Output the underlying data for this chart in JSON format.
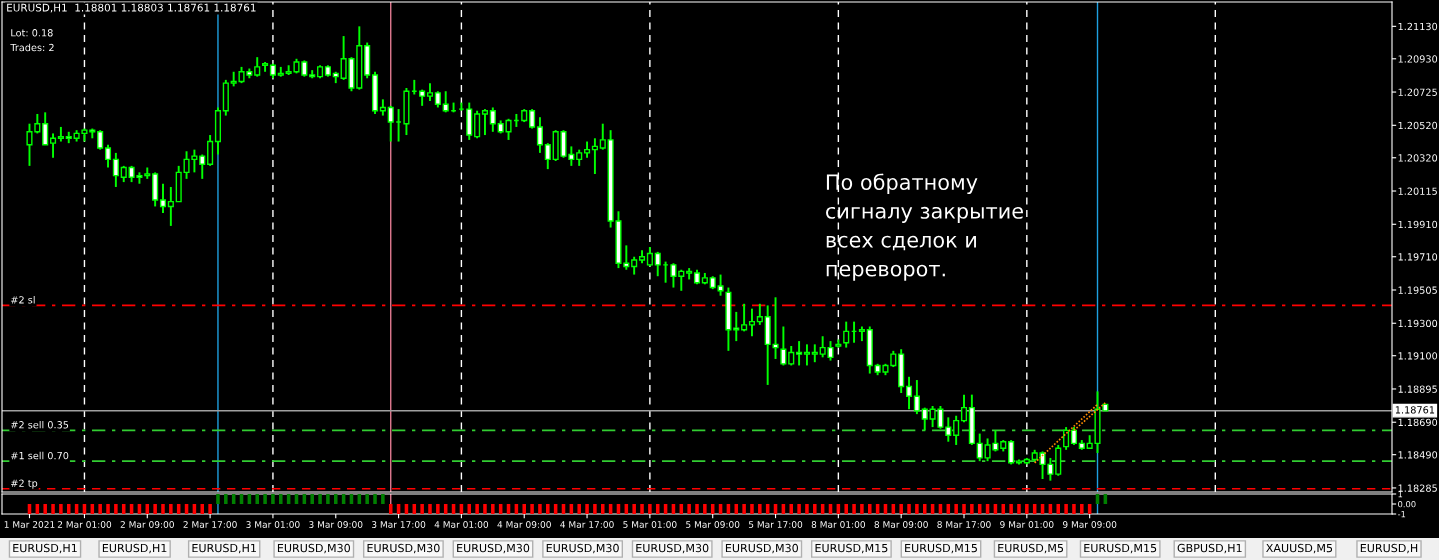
{
  "chart_data": [
    {
      "type": "candlestick",
      "title": "EURUSD,H1  1.18801 1.18803 1.18761 1.18761",
      "color": "#00ff00",
      "tick_labels": "y",
      "categories": [
        null,
        null,
        null,
        null,
        null,
        null,
        null,
        null,
        null,
        null,
        null,
        null,
        null,
        null,
        null,
        null,
        null,
        null,
        null,
        null,
        null,
        null,
        null,
        null,
        null,
        null,
        null,
        null,
        null,
        null,
        null,
        null,
        null,
        null,
        null,
        null,
        null,
        null,
        null,
        null,
        null,
        null,
        null,
        null,
        null,
        null,
        null,
        null,
        null,
        null,
        null,
        null,
        null,
        null,
        null,
        null,
        null,
        null,
        null,
        null,
        null,
        null,
        null,
        null,
        null,
        null,
        null,
        null,
        null,
        null,
        null,
        null,
        null,
        null,
        null,
        null,
        null,
        null,
        null,
        null,
        null,
        null,
        null,
        null,
        null,
        null,
        null,
        null,
        null,
        null,
        null,
        null,
        null,
        null,
        null,
        null,
        null,
        null,
        null,
        null,
        null,
        null,
        null,
        null,
        null,
        null,
        null,
        null,
        null,
        null,
        null,
        null,
        null,
        null,
        null,
        null,
        null,
        null,
        null,
        null,
        null,
        null,
        null,
        null,
        null,
        null,
        null,
        null,
        null,
        null,
        null,
        null,
        null,
        null,
        null,
        null,
        null,
        null,
        null,
        null,
        null,
        null,
        null,
        null,
        null,
        null,
        null,
        null,
        null,
        null,
        null,
        null,
        null,
        null,
        null,
        null,
        null,
        null,
        null,
        null,
        null,
        null,
        null,
        null,
        null,
        null,
        null,
        null,
        null,
        null,
        null,
        null,
        null,
        null,
        null,
        null,
        null
      ],
      "ohlc": [
        null,
        null,
        null,
        [
          1.204,
          1.2053,
          1.2027,
          1.2048
        ],
        [
          1.2048,
          1.2059,
          1.2047,
          1.2053
        ],
        [
          1.2053,
          1.206,
          1.204,
          1.204
        ],
        [
          1.2041,
          1.2047,
          1.2032,
          1.2044
        ],
        [
          1.2044,
          1.2051,
          1.2042,
          1.2045
        ],
        [
          1.2045,
          1.2048,
          1.2041,
          1.2044
        ],
        [
          1.2044,
          1.2049,
          1.2042,
          1.2047
        ],
        [
          1.2047,
          1.205,
          1.2042,
          1.2049
        ],
        [
          1.2049,
          1.205,
          1.2044,
          1.2048
        ],
        [
          1.2048,
          1.2049,
          1.2037,
          1.2038
        ],
        [
          1.2038,
          1.204,
          1.2026,
          1.2031
        ],
        [
          1.2031,
          1.2035,
          1.2014,
          1.2021
        ],
        [
          1.202,
          1.2027,
          1.2017,
          1.2026
        ],
        [
          1.2026,
          1.2027,
          1.2017,
          1.202
        ],
        [
          1.2021,
          1.2023,
          1.2016,
          1.202
        ],
        [
          1.2021,
          1.2026,
          1.2019,
          1.2022
        ],
        [
          1.2022,
          1.2023,
          1.2002,
          1.2006
        ],
        [
          1.2006,
          1.2016,
          1.1998,
          1.2002
        ],
        [
          1.2002,
          1.2014,
          1.199,
          1.2005
        ],
        [
          1.2005,
          1.2027,
          1.2005,
          1.2023
        ],
        [
          1.2023,
          1.2036,
          1.2019,
          1.2031
        ],
        [
          1.2031,
          1.2037,
          1.2023,
          1.2033
        ],
        [
          1.2033,
          1.2034,
          1.2019,
          1.2028
        ],
        [
          1.2028,
          1.2046,
          1.2027,
          1.2042
        ],
        [
          1.2042,
          1.2063,
          1.2034,
          1.2061
        ],
        [
          1.2061,
          1.208,
          1.2058,
          1.2078
        ],
        [
          1.2078,
          1.2085,
          1.2076,
          1.2079
        ],
        [
          1.2079,
          1.2088,
          1.2078,
          1.2085
        ],
        [
          1.2085,
          1.2087,
          1.2081,
          1.2083
        ],
        [
          1.2083,
          1.2094,
          1.2082,
          1.2088
        ],
        [
          1.2089,
          1.2091,
          1.2085,
          1.209
        ],
        [
          1.2089,
          1.209,
          1.2081,
          1.2083
        ],
        [
          1.2083,
          1.2088,
          1.2082,
          1.2084
        ],
        [
          1.2084,
          1.2089,
          1.2083,
          1.2085
        ],
        [
          1.2085,
          1.2093,
          1.2084,
          1.2091
        ],
        [
          1.2091,
          1.2092,
          1.2082,
          1.2083
        ],
        [
          1.2083,
          1.2086,
          1.2081,
          1.2082
        ],
        [
          1.2082,
          1.2089,
          1.2081,
          1.2088
        ],
        [
          1.2088,
          1.2089,
          1.2082,
          1.2083
        ],
        [
          1.2084,
          1.2085,
          1.2078,
          1.2082
        ],
        [
          1.2081,
          1.2107,
          1.208,
          1.2093
        ],
        [
          1.2093,
          1.2094,
          1.2073,
          1.2075
        ],
        [
          1.2075,
          1.2113,
          1.2074,
          1.2101
        ],
        [
          1.2101,
          1.2103,
          1.2081,
          1.2083
        ],
        [
          1.2083,
          1.2085,
          1.2059,
          1.2061
        ],
        [
          1.2061,
          1.2068,
          1.2058,
          1.2063
        ],
        [
          1.2063,
          1.2064,
          1.2042,
          1.2054
        ],
        [
          1.2054,
          1.2062,
          1.2042,
          1.2054
        ],
        [
          1.2053,
          1.2075,
          1.2046,
          1.2073
        ],
        [
          1.2073,
          1.208,
          1.2071,
          1.2073
        ],
        [
          1.2073,
          1.2074,
          1.2064,
          1.207
        ],
        [
          1.207,
          1.2078,
          1.2067,
          1.2072
        ],
        [
          1.2072,
          1.2073,
          1.2063,
          1.2065
        ],
        [
          1.2065,
          1.2073,
          1.206,
          1.2061
        ],
        [
          1.2061,
          1.2066,
          1.206,
          1.2061
        ],
        [
          1.2062,
          1.2066,
          1.2061,
          1.2062
        ],
        [
          1.2062,
          1.2066,
          1.2043,
          1.2046
        ],
        [
          1.2045,
          1.2061,
          1.2044,
          1.2059
        ],
        [
          1.2059,
          1.2062,
          1.2046,
          1.2061
        ],
        [
          1.2061,
          1.2063,
          1.2048,
          1.2053
        ],
        [
          1.2053,
          1.2055,
          1.2047,
          1.2048
        ],
        [
          1.2048,
          1.2056,
          1.2043,
          1.2055
        ],
        [
          1.2055,
          1.2059,
          1.2051,
          1.2055
        ],
        [
          1.2055,
          1.2062,
          1.2054,
          1.2061
        ],
        [
          1.2061,
          1.2062,
          1.205,
          1.2051
        ],
        [
          1.2051,
          1.2057,
          1.2035,
          1.204
        ],
        [
          1.204,
          1.2041,
          1.2025,
          1.2031
        ],
        [
          1.2031,
          1.2049,
          1.203,
          1.2048
        ],
        [
          1.2048,
          1.2049,
          1.2032,
          1.2033
        ],
        [
          1.2034,
          1.2039,
          1.2027,
          1.2031
        ],
        [
          1.2031,
          1.2037,
          1.2027,
          1.2035
        ],
        [
          1.2035,
          1.2042,
          1.2032,
          1.2037
        ],
        [
          1.2037,
          1.2044,
          1.2022,
          1.2039
        ],
        [
          1.2038,
          1.2053,
          1.2037,
          1.2043
        ],
        [
          1.2043,
          1.2049,
          1.1989,
          1.1993
        ],
        [
          1.1993,
          1.1999,
          1.1964,
          1.1967
        ],
        [
          1.1967,
          1.1978,
          1.1963,
          1.1965
        ],
        [
          1.1965,
          1.1971,
          1.196,
          1.1969
        ],
        [
          1.1969,
          1.1975,
          1.1967,
          1.1971
        ],
        [
          1.1966,
          1.1977,
          1.1965,
          1.1973
        ],
        [
          1.1973,
          1.1974,
          1.1959,
          1.1966
        ],
        [
          1.1966,
          1.1968,
          1.1955,
          1.1966
        ],
        [
          1.1966,
          1.1967,
          1.1952,
          1.1959
        ],
        [
          1.1959,
          1.1963,
          1.195,
          1.1962
        ],
        [
          1.1961,
          1.1964,
          1.1957,
          1.1962
        ],
        [
          1.1961,
          1.1963,
          1.1954,
          1.1955
        ],
        [
          1.1955,
          1.1961,
          1.1954,
          1.1958
        ],
        [
          1.1958,
          1.1959,
          1.1951,
          1.1952
        ],
        [
          1.1953,
          1.196,
          1.1947,
          1.195
        ],
        [
          1.1949,
          1.1952,
          1.1913,
          1.1926
        ],
        [
          1.1927,
          1.1937,
          1.1919,
          1.1926
        ],
        [
          1.1926,
          1.1942,
          1.1925,
          1.1929
        ],
        [
          1.1929,
          1.1939,
          1.1922,
          1.1931
        ],
        [
          1.1931,
          1.1942,
          1.1929,
          1.1934
        ],
        [
          1.1934,
          1.1941,
          1.1892,
          1.1917
        ],
        [
          1.1917,
          1.1946,
          1.1908,
          1.1915
        ],
        [
          1.1914,
          1.1928,
          1.1904,
          1.1905
        ],
        [
          1.1905,
          1.1916,
          1.1904,
          1.1912
        ],
        [
          1.1912,
          1.1919,
          1.1904,
          1.1911
        ],
        [
          1.1911,
          1.1917,
          1.1904,
          1.1912
        ],
        [
          1.1911,
          1.1917,
          1.1906,
          1.1912
        ],
        [
          1.1911,
          1.1922,
          1.1909,
          1.1915
        ],
        [
          1.1915,
          1.1919,
          1.1907,
          1.1909
        ],
        [
          1.1916,
          1.192,
          1.1915,
          1.1917
        ],
        [
          1.1918,
          1.1931,
          1.1915,
          1.1925
        ],
        [
          1.1925,
          1.1931,
          1.1918,
          1.1925
        ],
        [
          1.1925,
          1.1928,
          1.1919,
          1.1926
        ],
        [
          1.1926,
          1.1928,
          1.1899,
          1.1904
        ],
        [
          1.1904,
          1.1905,
          1.1898,
          1.19
        ],
        [
          1.19,
          1.1905,
          1.1898,
          1.1904
        ],
        [
          1.1904,
          1.1913,
          1.1903,
          1.1911
        ],
        [
          1.1911,
          1.1914,
          1.1887,
          1.1891
        ],
        [
          1.1891,
          1.1897,
          1.1877,
          1.1885
        ],
        [
          1.1885,
          1.1895,
          1.1874,
          1.1876
        ],
        [
          1.1877,
          1.1878,
          1.1864,
          1.1871
        ],
        [
          1.1871,
          1.1879,
          1.1866,
          1.1877
        ],
        [
          1.1877,
          1.1879,
          1.1865,
          1.1866
        ],
        [
          1.1866,
          1.1872,
          1.1857,
          1.1861
        ],
        [
          1.1861,
          1.1873,
          1.1855,
          1.187
        ],
        [
          1.187,
          1.1886,
          1.1869,
          1.1878
        ],
        [
          1.1878,
          1.1886,
          1.1855,
          1.1856
        ],
        [
          1.1856,
          1.1862,
          1.1845,
          1.1847
        ],
        [
          1.1847,
          1.1859,
          1.1845,
          1.1855
        ],
        [
          1.1856,
          1.1864,
          1.1851,
          1.1852
        ],
        [
          1.1853,
          1.1858,
          1.1851,
          1.1857
        ],
        [
          1.1857,
          1.1858,
          1.1843,
          1.1844
        ],
        [
          1.1844,
          1.1846,
          1.1843,
          1.1845
        ],
        [
          1.1844,
          1.1847,
          1.1843,
          1.1846
        ],
        [
          1.1846,
          1.1852,
          1.1845,
          1.185
        ],
        [
          1.185,
          1.1851,
          1.1834,
          1.1843
        ],
        [
          1.1843,
          1.1847,
          1.1833,
          1.1837
        ],
        [
          1.1837,
          1.1855,
          1.1836,
          1.1853
        ],
        [
          1.1854,
          1.1866,
          1.1852,
          1.1864
        ],
        [
          1.1864,
          1.1866,
          1.1855,
          1.1856
        ],
        [
          1.1856,
          1.1858,
          1.1852,
          1.1853
        ],
        [
          1.1853,
          1.1861,
          1.1853,
          1.1856
        ],
        [
          1.1856,
          1.1888,
          1.185,
          1.1877
        ],
        [
          1.188,
          1.188,
          1.1876,
          1.1876
        ],
        null,
        null,
        null,
        null,
        null,
        null,
        null,
        null,
        null,
        null,
        null,
        null,
        null,
        null,
        null,
        null,
        null,
        null,
        null,
        null,
        null,
        null,
        null,
        null,
        null,
        null,
        null,
        null,
        null,
        null,
        null,
        null,
        null,
        null,
        null,
        null
      ],
      "series": [
        {
          "type": "line",
          "color": "#ff8c00",
          "line_style": "dotted",
          "values": [
            null,
            null,
            null,
            null,
            null,
            null,
            null,
            null,
            null,
            null,
            null,
            null,
            null,
            null,
            null,
            null,
            null,
            null,
            null,
            null,
            null,
            null,
            null,
            null,
            null,
            null,
            null,
            null,
            null,
            null,
            null,
            null,
            null,
            null,
            null,
            null,
            null,
            null,
            null,
            null,
            null,
            null,
            null,
            null,
            null,
            null,
            null,
            null,
            null,
            null,
            null,
            null,
            null,
            null,
            null,
            null,
            null,
            null,
            null,
            null,
            null,
            null,
            null,
            null,
            null,
            null,
            null,
            null,
            null,
            null,
            null,
            null,
            null,
            null,
            null,
            null,
            null,
            null,
            null,
            null,
            null,
            null,
            null,
            null,
            null,
            null,
            null,
            null,
            null,
            null,
            null,
            null,
            null,
            null,
            null,
            null,
            null,
            null,
            null,
            null,
            null,
            null,
            null,
            null,
            null,
            null,
            null,
            null,
            null,
            null,
            null,
            null,
            null,
            null,
            null,
            null,
            null,
            null,
            null,
            null,
            null,
            null,
            null,
            null,
            null,
            null,
            null,
            null,
            null,
            null,
            null,
            1.1844,
            null,
            null,
            null,
            null,
            null,
            null,
            null,
            1.188,
            null,
            null,
            null,
            null,
            null,
            null,
            null,
            null,
            null,
            null,
            null,
            null,
            null,
            null,
            null,
            null,
            null,
            null,
            null,
            null,
            null,
            null,
            null,
            null,
            null,
            null,
            null,
            null,
            null,
            null,
            null,
            null,
            null,
            null,
            null,
            null,
            null
          ]
        },
        {
          "type": "line",
          "color": "#ff8c00",
          "line_style": "dotted",
          "values": [
            null,
            null,
            null,
            null,
            null,
            null,
            null,
            null,
            null,
            null,
            null,
            null,
            null,
            null,
            null,
            null,
            null,
            null,
            null,
            null,
            null,
            null,
            null,
            null,
            null,
            null,
            null,
            null,
            null,
            null,
            null,
            null,
            null,
            null,
            null,
            null,
            null,
            null,
            null,
            null,
            null,
            null,
            null,
            null,
            null,
            null,
            null,
            null,
            null,
            null,
            null,
            null,
            null,
            null,
            null,
            null,
            null,
            null,
            null,
            null,
            null,
            null,
            null,
            null,
            null,
            null,
            null,
            null,
            null,
            null,
            null,
            null,
            null,
            null,
            null,
            null,
            null,
            null,
            null,
            null,
            null,
            null,
            null,
            null,
            null,
            null,
            null,
            null,
            null,
            null,
            null,
            null,
            null,
            null,
            null,
            null,
            null,
            null,
            null,
            null,
            null,
            null,
            null,
            null,
            null,
            null,
            null,
            null,
            null,
            null,
            null,
            null,
            null,
            null,
            null,
            null,
            null,
            null,
            null,
            null,
            null,
            null,
            null,
            null,
            null,
            null,
            null,
            null,
            null,
            null,
            null,
            null,
            null,
            null,
            null,
            null,
            1.1864,
            null,
            null,
            null,
            1.1881,
            null,
            null,
            null,
            null,
            null,
            null,
            null,
            null,
            null,
            null,
            null,
            null,
            null,
            null,
            null,
            null,
            null,
            null,
            null,
            null,
            null,
            null,
            null,
            null,
            null,
            null,
            null,
            null,
            null,
            null,
            null,
            null,
            null,
            null,
            null,
            null
          ]
        }
      ],
      "ylim": [
        1.1826,
        1.2128
      ],
      "yticks": [
        {
          "value": 1.2113,
          "label": "1.21130"
        },
        {
          "value": 1.2093,
          "label": "1.20930"
        },
        {
          "value": 1.20725,
          "label": "1.20725"
        },
        {
          "value": 1.2052,
          "label": "1.20520"
        },
        {
          "value": 1.2032,
          "label": "1.20320"
        },
        {
          "value": 1.20115,
          "label": "1.20115"
        },
        {
          "value": 1.1991,
          "label": "1.19910"
        },
        {
          "value": 1.1971,
          "label": "1.19710"
        },
        {
          "value": 1.19505,
          "label": "1.19505"
        },
        {
          "value": 1.193,
          "label": "1.19300"
        },
        {
          "value": 1.191,
          "label": "1.19100"
        },
        {
          "value": 1.18895,
          "label": "1.18895"
        },
        {
          "value": 1.1869,
          "label": "1.18690"
        },
        {
          "value": 1.1849,
          "label": "1.18490"
        },
        {
          "value": 1.18285,
          "label": "1.18285"
        }
      ],
      "ref_lines": [
        {
          "axis": "y",
          "value": 1.1941,
          "label": "#2 sl",
          "color": "#ff0000",
          "line_style": "dashdot"
        },
        {
          "axis": "y",
          "value": 1.1864,
          "label": "#2 sell 0.35",
          "color": "#32cd32",
          "line_style": "dashdot"
        },
        {
          "axis": "y",
          "value": 1.1845,
          "label": "#1 sell 0.70",
          "color": "#32cd32",
          "line_style": "dashdot"
        },
        {
          "axis": "y",
          "value": 1.1828,
          "label": "#2 tp",
          "color": "#ff0000",
          "line_style": "dashed"
        },
        {
          "axis": "y",
          "value": 1.18761,
          "label": "1.18761",
          "color": "#a0a0a0",
          "line_style": "solid"
        }
      ],
      "annotations": [
        "Lot: 0.18",
        "Trades: 2",
        "По обратному\nсигналу закрытие\nвсех сделок и\nпереворот.",
        "EURUSD,H1",
        "EURUSD,H1",
        "EURUSD,H1",
        "EURUSD,M30",
        "EURUSD,M30",
        "EURUSD,M30",
        "EURUSD,M30",
        "EURUSD,M30",
        "EURUSD,M30",
        "EURUSD,M15",
        "EURUSD,M15",
        "EURUSD,M5",
        "EURUSD,M15",
        "GBPUSD,H1",
        "XAUUSD,M5",
        "EURUSD,H"
      ]
    },
    {
      "type": "bar",
      "categories": [
        null,
        null,
        null,
        "1 Mar 2021",
        null,
        null,
        null,
        null,
        null,
        null,
        "2 Mar 01:00",
        null,
        null,
        null,
        null,
        null,
        null,
        null,
        "2 Mar 09:00",
        null,
        null,
        null,
        null,
        null,
        null,
        null,
        "2 Mar 17:00",
        null,
        null,
        null,
        null,
        null,
        null,
        null,
        "3 Mar 01:00",
        null,
        null,
        null,
        null,
        null,
        null,
        null,
        "3 Mar 09:00",
        null,
        null,
        null,
        null,
        null,
        null,
        null,
        "3 Mar 17:00",
        null,
        null,
        null,
        null,
        null,
        null,
        null,
        "4 Mar 01:00",
        null,
        null,
        null,
        null,
        null,
        null,
        null,
        "4 Mar 09:00",
        null,
        null,
        null,
        null,
        null,
        null,
        null,
        "4 Mar 17:00",
        null,
        null,
        null,
        null,
        null,
        null,
        null,
        "5 Mar 01:00",
        null,
        null,
        null,
        null,
        null,
        null,
        null,
        "5 Mar 09:00",
        null,
        null,
        null,
        null,
        null,
        null,
        null,
        "5 Mar 17:00",
        null,
        null,
        null,
        null,
        null,
        null,
        null,
        "8 Mar 01:00",
        null,
        null,
        null,
        null,
        null,
        null,
        null,
        "8 Mar 09:00",
        null,
        null,
        null,
        null,
        null,
        null,
        null,
        "8 Mar 17:00",
        null,
        null,
        null,
        null,
        null,
        null,
        null,
        "9 Mar 01:00",
        null,
        null,
        null,
        null,
        null,
        null,
        null,
        "9 Mar 09:00",
        null,
        null,
        null,
        null,
        null,
        null,
        null,
        null,
        null,
        null,
        null,
        null,
        null,
        null,
        null,
        null,
        null,
        null,
        null,
        null,
        null,
        null,
        null,
        null,
        null,
        null,
        null,
        null,
        null,
        null,
        null,
        null,
        null,
        null,
        null,
        null,
        null,
        null
      ],
      "values": [
        null,
        null,
        null,
        -1,
        -1,
        -1,
        -1,
        -1,
        -1,
        -1,
        -1,
        -1,
        -1,
        -1,
        -1,
        -1,
        -1,
        -1,
        -1,
        -1,
        -1,
        -1,
        -1,
        -1,
        -1,
        -1,
        -1,
        1,
        1,
        1,
        1,
        1,
        1,
        1,
        1,
        1,
        1,
        1,
        1,
        1,
        1,
        1,
        1,
        1,
        1,
        1,
        1,
        1,
        1,
        -1,
        -1,
        -1,
        -1,
        -1,
        -1,
        -1,
        -1,
        -1,
        -1,
        -1,
        -1,
        -1,
        -1,
        -1,
        -1,
        -1,
        -1,
        -1,
        -1,
        -1,
        -1,
        -1,
        -1,
        -1,
        -1,
        -1,
        -1,
        -1,
        -1,
        -1,
        -1,
        -1,
        -1,
        -1,
        -1,
        -1,
        -1,
        -1,
        -1,
        -1,
        -1,
        -1,
        -1,
        -1,
        -1,
        -1,
        -1,
        -1,
        -1,
        -1,
        -1,
        -1,
        -1,
        -1,
        -1,
        -1,
        -1,
        -1,
        -1,
        -1,
        -1,
        -1,
        -1,
        -1,
        -1,
        -1,
        -1,
        -1,
        -1,
        -1,
        -1,
        -1,
        -1,
        -1,
        -1,
        -1,
        -1,
        -1,
        -1,
        -1,
        -1,
        -1,
        -1,
        -1,
        -1,
        -1,
        -1,
        -1,
        -1,
        1,
        1,
        null,
        null,
        null,
        null,
        null,
        null,
        null,
        null,
        null,
        null,
        null,
        null,
        null,
        null,
        null,
        null,
        null,
        null,
        null,
        null,
        null,
        null,
        null,
        null,
        null,
        null,
        null,
        null,
        null,
        null,
        null,
        null,
        null,
        null,
        null,
        null
      ],
      "colors": [
        null,
        null,
        null,
        "#ff0000",
        "#ff0000",
        "#ff0000",
        "#ff0000",
        "#ff0000",
        "#ff0000",
        "#ff0000",
        "#ff0000",
        "#ff0000",
        "#ff0000",
        "#ff0000",
        "#ff0000",
        "#ff0000",
        "#ff0000",
        "#ff0000",
        "#ff0000",
        "#ff0000",
        "#ff0000",
        "#ff0000",
        "#ff0000",
        "#ff0000",
        "#ff0000",
        "#ff0000",
        "#ff0000",
        "#008000",
        "#008000",
        "#008000",
        "#008000",
        "#008000",
        "#008000",
        "#008000",
        "#008000",
        "#008000",
        "#008000",
        "#008000",
        "#008000",
        "#008000",
        "#008000",
        "#008000",
        "#008000",
        "#008000",
        "#008000",
        "#008000",
        "#008000",
        "#008000",
        "#008000",
        "#ff0000",
        "#ff0000",
        "#ff0000",
        "#ff0000",
        "#ff0000",
        "#ff0000",
        "#ff0000",
        "#ff0000",
        "#ff0000",
        "#ff0000",
        "#ff0000",
        "#ff0000",
        "#ff0000",
        "#ff0000",
        "#ff0000",
        "#ff0000",
        "#ff0000",
        "#ff0000",
        "#ff0000",
        "#ff0000",
        "#ff0000",
        "#ff0000",
        "#ff0000",
        "#ff0000",
        "#ff0000",
        "#ff0000",
        "#ff0000",
        "#ff0000",
        "#ff0000",
        "#ff0000",
        "#ff0000",
        "#ff0000",
        "#ff0000",
        "#ff0000",
        "#ff0000",
        "#ff0000",
        "#ff0000",
        "#ff0000",
        "#ff0000",
        "#ff0000",
        "#ff0000",
        "#ff0000",
        "#ff0000",
        "#ff0000",
        "#ff0000",
        "#ff0000",
        "#ff0000",
        "#ff0000",
        "#ff0000",
        "#ff0000",
        "#ff0000",
        "#ff0000",
        "#ff0000",
        "#ff0000",
        "#ff0000",
        "#ff0000",
        "#ff0000",
        "#ff0000",
        "#ff0000",
        "#ff0000",
        "#ff0000",
        "#ff0000",
        "#ff0000",
        "#ff0000",
        "#ff0000",
        "#ff0000",
        "#ff0000",
        "#ff0000",
        "#ff0000",
        "#ff0000",
        "#ff0000",
        "#ff0000",
        "#ff0000",
        "#ff0000",
        "#ff0000",
        "#ff0000",
        "#ff0000",
        "#ff0000",
        "#ff0000",
        "#ff0000",
        "#ff0000",
        "#ff0000",
        "#ff0000",
        "#ff0000",
        "#ff0000",
        "#ff0000",
        "#ff0000",
        "#ff0000",
        "#ff0000",
        "#ff0000",
        "#008000",
        "#008000",
        null,
        null,
        null,
        null,
        null,
        null,
        null,
        null,
        null,
        null,
        null,
        null,
        null,
        null,
        null,
        null,
        null,
        null,
        null,
        null,
        null,
        null,
        null,
        null,
        null,
        null,
        null,
        null,
        null,
        null,
        null,
        null,
        null,
        null,
        null,
        null
      ],
      "ylim": [
        -1,
        1
      ],
      "yticks": [
        {
          "value": 1,
          "label": "1"
        },
        {
          "value": 0,
          "label": "0.00"
        },
        {
          "value": -1,
          "label": "-1"
        }
      ]
    }
  ]
}
